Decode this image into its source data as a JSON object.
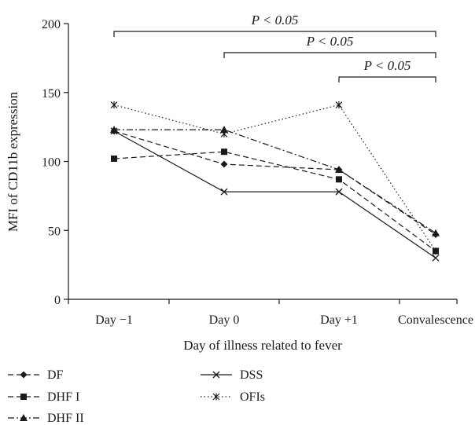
{
  "chart_data": {
    "type": "line",
    "title": "",
    "xlabel": "Day of illness related to fever",
    "ylabel": "MFI of CD11b expression",
    "categories": [
      "Day −1",
      "Day 0",
      "Day +1",
      "Convalescence"
    ],
    "ylim": [
      0,
      200
    ],
    "yticks": [
      0,
      50,
      100,
      150,
      200
    ],
    "grid": false,
    "legend_position": "bottom",
    "series": [
      {
        "name": "DF",
        "marker": "diamond",
        "dash": "dashed",
        "values": [
          122,
          98,
          94,
          47
        ]
      },
      {
        "name": "DHF I",
        "marker": "square",
        "dash": "dashed",
        "values": [
          102,
          107,
          87,
          35
        ]
      },
      {
        "name": "DHF II",
        "marker": "triangle",
        "dash": "dashdot",
        "values": [
          123,
          123,
          94,
          48
        ]
      },
      {
        "name": "DSS",
        "marker": "x",
        "dash": "solid",
        "values": [
          122,
          78,
          78,
          30
        ]
      },
      {
        "name": "OFIs",
        "marker": "asterisk",
        "dash": "dotted",
        "values": [
          141,
          120,
          141,
          35
        ]
      }
    ],
    "significance_brackets": [
      {
        "label": "P < 0.05",
        "from": 0,
        "to": 3
      },
      {
        "label": "P < 0.05",
        "from": 1,
        "to": 3
      },
      {
        "label": "P < 0.05",
        "from": 2,
        "to": 3
      }
    ]
  }
}
